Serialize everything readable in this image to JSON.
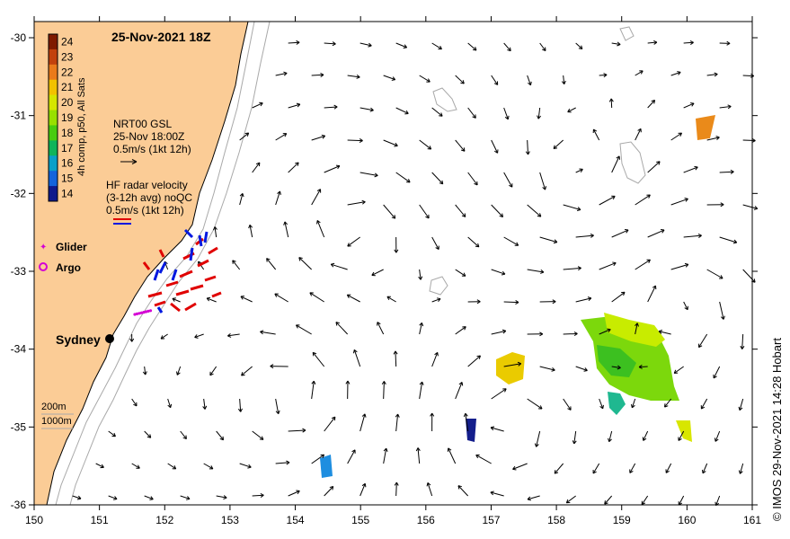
{
  "title": "25-Nov-2021 18Z",
  "colorbar": {
    "label": "4h comp, p50, All Sats",
    "ticks": [
      "24",
      "23",
      "22",
      "21",
      "20",
      "19",
      "18",
      "17",
      "16",
      "15",
      "14"
    ],
    "colors": [
      "#7f1a00",
      "#c2410c",
      "#ea7a1a",
      "#f2c200",
      "#d6e600",
      "#98e000",
      "#48cc10",
      "#10b45a",
      "#0aa0c8",
      "#1464dc",
      "#101a8c"
    ]
  },
  "legend": {
    "glider_title": "NRT00 GSL",
    "glider_time": "25-Nov 18:00Z",
    "glider_scale": "0.5m/s (1kt 12h)",
    "radar_title": "HF radar velocity",
    "radar_sub": "(3-12h avg) noQC",
    "radar_scale": "0.5m/s (1kt 12h)",
    "glider_label": "Glider",
    "argo_label": "Argo",
    "depth_200": "200m",
    "depth_1000": "1000m",
    "city": "Sydney"
  },
  "axes": {
    "x_ticks": [
      "150",
      "151",
      "152",
      "153",
      "154",
      "155",
      "156",
      "157",
      "158",
      "159",
      "160",
      "161"
    ],
    "y_ticks": [
      "-30",
      "-31",
      "-32",
      "-33",
      "-34",
      "-35",
      "-36"
    ]
  },
  "copyright": "© IMOS 29-Nov-2021 14:28 Hobart",
  "colors": {
    "land": "#fbcc96",
    "glider": "#d400d4",
    "radar_red": "#e00000",
    "radar_blue": "#0018e0"
  }
}
